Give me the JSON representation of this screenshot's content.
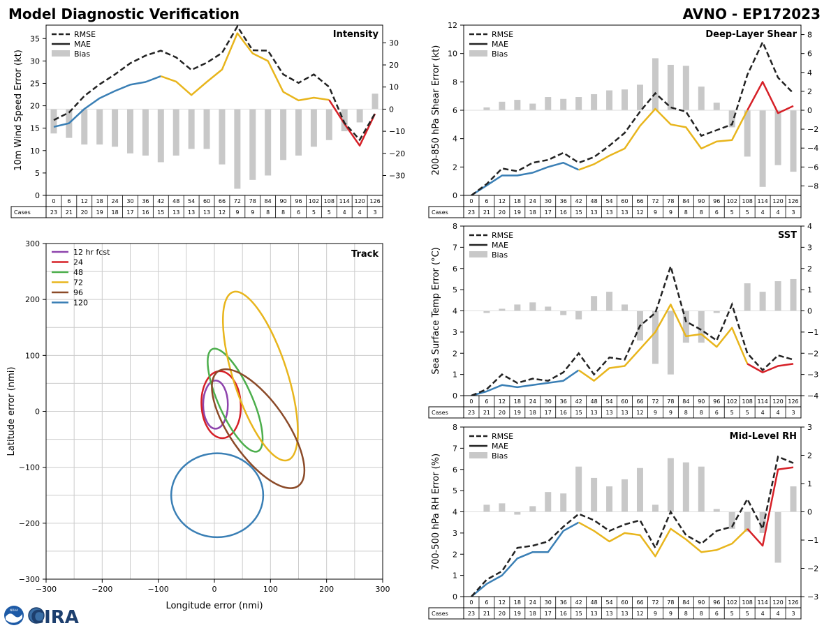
{
  "header": {
    "title_left": "Model Diagnostic Verification",
    "title_right": "AVNO - EP172023"
  },
  "logos": {
    "noaa_text": "NOAA",
    "cira_text": "CIRA"
  },
  "table_header": "Cases",
  "series_colors": {
    "rmse": "#222222",
    "bias": "#c8c8c8",
    "mae_seg_1": "#3a7fb5",
    "mae_seg_2": "#e8b51c",
    "mae_seg_3": "#d62027"
  },
  "legend_labels": {
    "rmse": "RMSE",
    "mae": "MAE",
    "bias": "Bias"
  },
  "chart_data": [
    {
      "id": "intensity",
      "type": "line",
      "title": "Intensity",
      "ylabel": "10m Wind Speed Error (kt)",
      "ylim": [
        0,
        38
      ],
      "yticks": [
        0,
        5,
        10,
        15,
        20,
        25,
        30,
        35
      ],
      "ylim2": [
        -39,
        38
      ],
      "yticks2": [
        -30,
        -20,
        -10,
        0,
        10,
        20,
        30
      ],
      "x": [
        0,
        6,
        12,
        18,
        24,
        30,
        36,
        42,
        48,
        54,
        60,
        66,
        72,
        78,
        84,
        90,
        96,
        102,
        108,
        114,
        120,
        126
      ],
      "rmse": [
        16.8,
        18.5,
        22.2,
        24.8,
        27.0,
        29.5,
        31.2,
        32.3,
        30.8,
        28.0,
        29.6,
        31.8,
        37.7,
        32.4,
        32.3,
        27.0,
        25.1,
        27.0,
        24.2,
        16.2,
        12.4,
        18.3
      ],
      "mae": [
        15.3,
        16.1,
        19.3,
        21.7,
        23.3,
        24.7,
        25.3,
        26.6,
        25.4,
        22.4,
        25.3,
        28.1,
        36.2,
        31.7,
        30.0,
        23.1,
        21.2,
        21.8,
        21.3,
        16.0,
        11.1,
        18.2
      ],
      "bias": [
        -11,
        -13,
        -16,
        -16,
        -17,
        -20,
        -21,
        -24,
        -21,
        -18,
        -18,
        -25,
        -36,
        -32,
        -30,
        -23,
        -21,
        -17,
        -14,
        -10,
        -6,
        7
      ],
      "cases": [
        23,
        21,
        20,
        19,
        18,
        17,
        16,
        15,
        13,
        13,
        13,
        12,
        9,
        9,
        8,
        8,
        6,
        5,
        5,
        4,
        4,
        3
      ]
    },
    {
      "id": "shear",
      "type": "line",
      "title": "Deep-Layer Shear",
      "ylabel": "200-850 hPa Shear Error (kt)",
      "ylim": [
        0,
        12
      ],
      "yticks": [
        0,
        2,
        4,
        6,
        8,
        10,
        12
      ],
      "ylim2": [
        -9,
        9
      ],
      "yticks2": [
        -8,
        -6,
        -4,
        -2,
        0,
        2,
        4,
        6,
        8
      ],
      "x": [
        0,
        6,
        12,
        18,
        24,
        30,
        36,
        42,
        48,
        54,
        60,
        66,
        72,
        78,
        84,
        90,
        96,
        102,
        108,
        114,
        120,
        126
      ],
      "rmse": [
        0.0,
        0.8,
        1.9,
        1.7,
        2.3,
        2.5,
        3.0,
        2.3,
        2.7,
        3.5,
        4.4,
        5.9,
        7.2,
        6.2,
        5.9,
        4.2,
        4.6,
        5.0,
        8.5,
        10.8,
        8.3,
        7.2
      ],
      "mae": [
        0.0,
        0.7,
        1.4,
        1.4,
        1.6,
        2.0,
        2.3,
        1.8,
        2.2,
        2.8,
        3.3,
        4.9,
        6.1,
        5.0,
        4.8,
        3.3,
        3.8,
        3.9,
        6.0,
        8.0,
        5.8,
        6.3
      ],
      "bias": [
        0.0,
        0.3,
        0.9,
        1.1,
        0.7,
        1.4,
        1.2,
        1.4,
        1.7,
        2.1,
        2.2,
        2.7,
        5.5,
        4.8,
        4.7,
        2.5,
        0.8,
        -1.8,
        -4.9,
        -8.1,
        -5.8,
        -6.5
      ],
      "cases": [
        23,
        21,
        20,
        19,
        18,
        17,
        16,
        15,
        13,
        13,
        13,
        12,
        9,
        9,
        8,
        8,
        6,
        5,
        5,
        4,
        4,
        3
      ]
    },
    {
      "id": "sst",
      "type": "line",
      "title": "SST",
      "ylabel": "Sea Surface Temp Error (°C)",
      "ylim": [
        0,
        8
      ],
      "yticks": [
        0,
        1,
        2,
        3,
        4,
        5,
        6,
        7,
        8
      ],
      "ylim2": [
        -4,
        4
      ],
      "yticks2": [
        -4,
        -3,
        -2,
        -1,
        0,
        1,
        2,
        3,
        4
      ],
      "x": [
        0,
        6,
        12,
        18,
        24,
        30,
        36,
        42,
        48,
        54,
        60,
        66,
        72,
        78,
        84,
        90,
        96,
        102,
        108,
        114,
        120,
        126
      ],
      "rmse": [
        0.0,
        0.3,
        1.0,
        0.6,
        0.8,
        0.7,
        1.1,
        2.0,
        1.0,
        1.8,
        1.7,
        3.3,
        3.9,
        6.1,
        3.5,
        3.1,
        2.6,
        4.3,
        2.0,
        1.2,
        1.9,
        1.7
      ],
      "mae": [
        0.0,
        0.2,
        0.5,
        0.4,
        0.5,
        0.6,
        0.7,
        1.2,
        0.7,
        1.3,
        1.4,
        2.2,
        3.0,
        4.3,
        2.8,
        2.9,
        2.3,
        3.2,
        1.5,
        1.1,
        1.4,
        1.5
      ],
      "bias": [
        0.0,
        -0.1,
        0.1,
        0.3,
        0.4,
        0.2,
        -0.2,
        -0.4,
        0.7,
        0.9,
        0.3,
        -1.4,
        -2.5,
        -3.0,
        -1.5,
        -1.5,
        -0.1,
        0.0,
        1.3,
        0.9,
        1.4,
        1.5
      ],
      "cases": [
        23,
        21,
        20,
        19,
        18,
        17,
        16,
        15,
        13,
        13,
        13,
        12,
        9,
        9,
        8,
        8,
        6,
        5,
        5,
        4,
        4,
        3
      ]
    },
    {
      "id": "rh",
      "type": "line",
      "title": "Mid-Level RH",
      "ylabel": "700-500 hPa RH Error (%)",
      "ylim": [
        0,
        8
      ],
      "yticks": [
        0,
        1,
        2,
        3,
        4,
        5,
        6,
        7,
        8
      ],
      "ylim2": [
        -3,
        3
      ],
      "yticks2": [
        -3,
        -2,
        -1,
        0,
        1,
        2,
        3
      ],
      "x": [
        0,
        6,
        12,
        18,
        24,
        30,
        36,
        42,
        48,
        54,
        60,
        66,
        72,
        78,
        84,
        90,
        96,
        102,
        108,
        114,
        120,
        126
      ],
      "rmse": [
        0.0,
        0.8,
        1.2,
        2.3,
        2.4,
        2.6,
        3.3,
        3.9,
        3.6,
        3.1,
        3.4,
        3.6,
        2.3,
        4.0,
        2.9,
        2.5,
        3.1,
        3.3,
        4.6,
        3.2,
        6.6,
        6.3
      ],
      "mae": [
        0.0,
        0.6,
        1.0,
        1.8,
        2.1,
        2.1,
        3.1,
        3.5,
        3.1,
        2.6,
        3.0,
        2.9,
        1.9,
        3.2,
        2.7,
        2.1,
        2.2,
        2.5,
        3.2,
        2.4,
        6.0,
        6.1
      ],
      "bias": [
        0.0,
        0.25,
        0.3,
        -0.1,
        0.2,
        0.7,
        0.65,
        1.6,
        1.2,
        0.9,
        1.15,
        1.55,
        0.25,
        1.9,
        1.75,
        1.6,
        0.1,
        -0.6,
        -0.7,
        -0.75,
        -1.8,
        0.9
      ],
      "cases": [
        23,
        21,
        20,
        19,
        18,
        17,
        16,
        15,
        13,
        13,
        13,
        12,
        9,
        9,
        8,
        8,
        6,
        5,
        5,
        4,
        4,
        3
      ]
    },
    {
      "id": "track",
      "type": "scatter",
      "title": "Track",
      "xlabel": "Longitude error (nmi)",
      "ylabel": "Latitude error (nmi)",
      "xlim": [
        -300,
        300
      ],
      "ylim": [
        -300,
        300
      ],
      "ticks": [
        -300,
        -200,
        -100,
        0,
        100,
        200,
        300
      ],
      "grid_step": 50,
      "ellipses": [
        {
          "label": "12 hr fcst",
          "color": "#8e44ad",
          "cx": 2,
          "cy": 12,
          "rx": 22,
          "ry": 43,
          "angle_deg": 0
        },
        {
          "label": "24",
          "color": "#d62027",
          "cx": 12,
          "cy": 12,
          "rx": 35,
          "ry": 60,
          "angle_deg": -3
        },
        {
          "label": "48",
          "color": "#4cae4c",
          "cx": 37,
          "cy": 20,
          "rx": 30,
          "ry": 100,
          "angle_deg": -24
        },
        {
          "label": "72",
          "color": "#e8b51c",
          "cx": 82,
          "cy": 63,
          "rx": 48,
          "ry": 158,
          "angle_deg": -18
        },
        {
          "label": "96",
          "color": "#8b4a28",
          "cx": 78,
          "cy": -31,
          "rx": 50,
          "ry": 125,
          "angle_deg": -35
        },
        {
          "label": "120",
          "color": "#3a7fb5",
          "cx": 5,
          "cy": -150,
          "rx": 82,
          "ry": 75,
          "angle_deg": 0
        }
      ]
    }
  ]
}
